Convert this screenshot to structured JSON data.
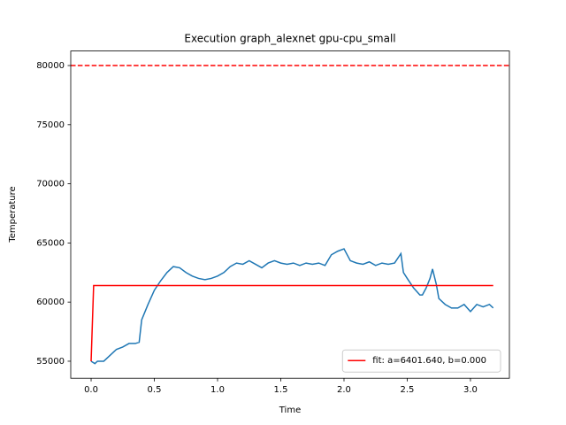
{
  "chart_data": {
    "type": "line",
    "title": "Execution graph_alexnet gpu-cpu_small",
    "x_label": "Time",
    "y_label": "Temperature",
    "xlim": [
      -0.161,
      3.308
    ],
    "ylim": [
      53560,
      81230
    ],
    "xticks": [
      {
        "value": 0,
        "label": "0.0"
      },
      {
        "value": 0.5,
        "label": "0.5"
      },
      {
        "value": 1,
        "label": "1.0"
      },
      {
        "value": 1.5,
        "label": "1.5"
      },
      {
        "value": 2,
        "label": "2.0"
      },
      {
        "value": 2.5,
        "label": "2.5"
      },
      {
        "value": 3,
        "label": "3.0"
      }
    ],
    "yticks": [
      55000,
      60000,
      65000,
      70000,
      75000,
      80000
    ],
    "legend": "lower right",
    "reference_line": {
      "value": 80000,
      "color": "#ff0000",
      "style": "dashed"
    },
    "series": [
      {
        "color": "#1f77b4",
        "x": [
          0,
          0.03,
          0.05,
          0.1,
          0.15,
          0.2,
          0.25,
          0.3,
          0.35,
          0.38,
          0.4,
          0.45,
          0.5,
          0.55,
          0.6,
          0.65,
          0.7,
          0.75,
          0.8,
          0.85,
          0.9,
          0.95,
          1.0,
          1.05,
          1.1,
          1.15,
          1.2,
          1.25,
          1.3,
          1.35,
          1.4,
          1.45,
          1.5,
          1.55,
          1.6,
          1.65,
          1.7,
          1.75,
          1.8,
          1.85,
          1.9,
          1.95,
          2.0,
          2.05,
          2.1,
          2.15,
          2.2,
          2.25,
          2.3,
          2.35,
          2.4,
          2.45,
          2.47,
          2.5,
          2.55,
          2.6,
          2.62,
          2.65,
          2.68,
          2.7,
          2.73,
          2.75,
          2.8,
          2.85,
          2.9,
          2.95,
          3.0,
          3.05,
          3.1,
          3.15,
          3.18
        ],
        "values": [
          55000,
          54800,
          55000,
          55000,
          55500,
          56000,
          56200,
          56500,
          56500,
          56600,
          58500,
          59800,
          61000,
          61800,
          62500,
          63000,
          62900,
          62500,
          62200,
          62000,
          61900,
          62000,
          62200,
          62500,
          63000,
          63300,
          63200,
          63500,
          63200,
          62900,
          63300,
          63500,
          63300,
          63200,
          63300,
          63100,
          63300,
          63200,
          63300,
          63100,
          64000,
          64300,
          64500,
          63500,
          63300,
          63200,
          63400,
          63100,
          63300,
          63200,
          63300,
          64100,
          62500,
          62000,
          61200,
          60600,
          60600,
          61200,
          62000,
          62800,
          61500,
          60300,
          59800,
          59500,
          59500,
          59800,
          59200,
          59800,
          59600,
          59800,
          59500
        ]
      },
      {
        "name": "fit: a=6401.640, b=0.000",
        "color": "#ff0000",
        "x": [
          0,
          0.02,
          3.18
        ],
        "values": [
          55000,
          61400,
          61400
        ]
      }
    ]
  }
}
